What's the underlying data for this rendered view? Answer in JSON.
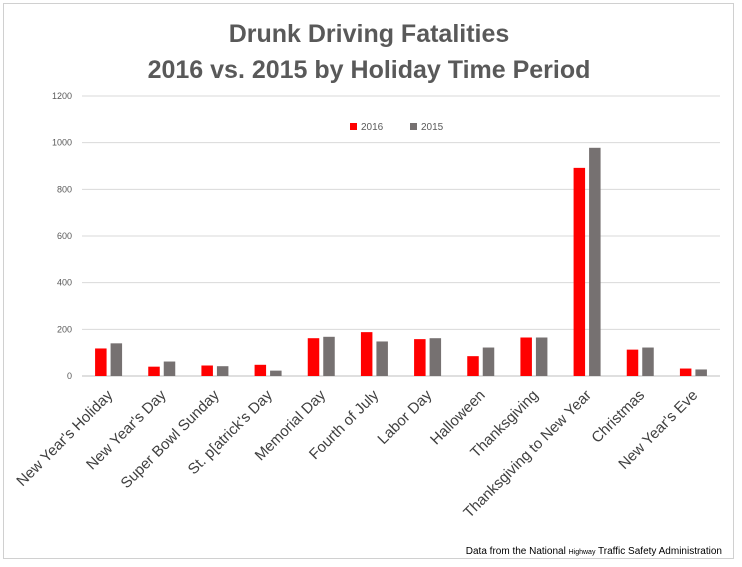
{
  "chart_data": {
    "type": "bar",
    "title_lines": [
      "Drunk Driving Fatalities",
      "2016 vs. 2015 by Holiday Time Period"
    ],
    "xlabel": "",
    "ylabel": "",
    "ylim": [
      0,
      1200
    ],
    "yticks": [
      0,
      200,
      400,
      600,
      800,
      1000,
      1200
    ],
    "grid": true,
    "legend_position": "top-center",
    "categories": [
      "New Year's Holiday",
      "New Year's Day",
      "Super Bowl Sunday",
      "St. p[atrick's Day",
      "Memorial Day",
      "Fourth of July",
      "Labor Day",
      "Halloween",
      "Thanksgiving",
      "Thanksgiving to New Year",
      "Christmas",
      "New Year's Eve"
    ],
    "series": [
      {
        "name": "2016",
        "color": "#ff0000",
        "values": [
          118,
          40,
          45,
          48,
          162,
          188,
          158,
          85,
          165,
          892,
          113,
          32
        ]
      },
      {
        "name": "2015",
        "color": "#767171",
        "values": [
          140,
          62,
          42,
          23,
          168,
          148,
          162,
          122,
          165,
          978,
          122,
          28
        ]
      }
    ],
    "source_note": {
      "prefix": "Data from the National ",
      "small": "Highway",
      "suffix": " Traffic Safety Administration"
    }
  }
}
